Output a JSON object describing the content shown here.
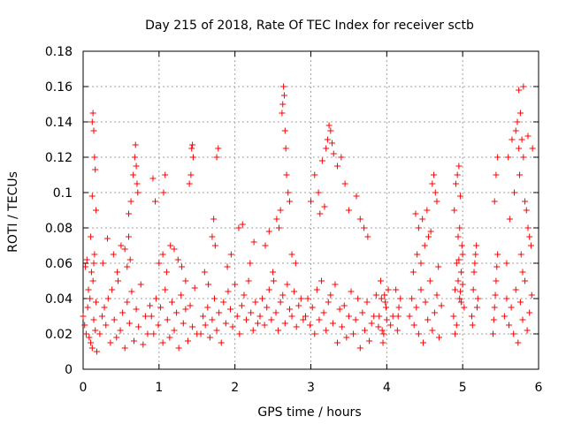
{
  "chart_data": {
    "type": "scatter",
    "title": "Day 215 of 2018, Rate Of TEC Index for receiver sctb",
    "xlabel": "GPS time / hours",
    "ylabel": "ROTI / TECUs",
    "xlim": [
      0,
      6
    ],
    "ylim": [
      0,
      0.18
    ],
    "x_ticks": [
      "0",
      "1",
      "2",
      "3",
      "4",
      "5",
      "6"
    ],
    "y_ticks": [
      "0",
      "0.02",
      "0.04",
      "0.06",
      "0.08",
      "0.1",
      "0.12",
      "0.14",
      "0.16",
      "0.18"
    ],
    "grid": true,
    "marker": "+",
    "series": [
      {
        "name": "ROTI",
        "color": "#ff0000",
        "x": [
          0.0,
          0.02,
          0.04,
          0.06,
          0.08,
          0.1,
          0.12,
          0.14,
          0.16,
          0.18,
          0.03,
          0.05,
          0.07,
          0.09,
          0.11,
          0.13,
          0.15,
          0.17,
          0.12,
          0.13,
          0.14,
          0.15,
          0.16,
          0.17,
          0.1,
          0.12,
          0.14,
          0.22,
          0.25,
          0.28,
          0.3,
          0.33,
          0.36,
          0.38,
          0.41,
          0.44,
          0.46,
          0.49,
          0.52,
          0.55,
          0.58,
          0.61,
          0.64,
          0.67,
          0.7,
          0.73,
          0.76,
          0.79,
          0.82,
          0.85,
          0.88,
          0.26,
          0.32,
          0.4,
          0.45,
          0.5,
          0.55,
          0.6,
          0.63,
          0.66,
          0.68,
          0.69,
          0.7,
          0.71,
          0.72,
          0.58,
          0.6,
          0.62,
          0.9,
          0.93,
          0.96,
          0.99,
          1.02,
          1.05,
          1.08,
          1.11,
          1.14,
          1.17,
          1.2,
          1.23,
          1.26,
          1.29,
          1.32,
          1.35,
          1.38,
          1.41,
          1.44,
          1.47,
          1.5,
          1.0,
          1.05,
          1.1,
          1.15,
          1.2,
          1.25,
          1.3,
          1.35,
          1.4,
          1.42,
          1.43,
          1.44,
          1.45,
          0.92,
          0.95,
          1.06,
          1.08,
          1.55,
          1.58,
          1.61,
          1.64,
          1.67,
          1.7,
          1.73,
          1.76,
          1.79,
          1.82,
          1.85,
          1.88,
          1.91,
          1.94,
          1.97,
          2.0,
          2.03,
          2.06,
          2.09,
          2.12,
          2.15,
          2.18,
          2.21,
          2.24,
          2.27,
          2.3,
          1.6,
          1.65,
          1.7,
          1.72,
          1.74,
          1.76,
          1.78,
          1.9,
          1.95,
          2.05,
          2.1,
          2.2,
          2.25,
          2.33,
          2.36,
          2.39,
          2.42,
          2.45,
          2.48,
          2.51,
          2.54,
          2.57,
          2.6,
          2.63,
          2.66,
          2.69,
          2.72,
          2.75,
          2.78,
          2.81,
          2.84,
          2.87,
          2.9,
          2.62,
          2.63,
          2.64,
          2.65,
          2.66,
          2.67,
          2.68,
          2.7,
          2.72,
          2.4,
          2.45,
          2.55,
          2.6,
          2.75,
          2.8,
          2.5,
          2.58,
          2.93,
          2.96,
          2.99,
          3.02,
          3.05,
          3.08,
          3.11,
          3.14,
          3.17,
          3.2,
          3.23,
          3.26,
          3.29,
          3.32,
          3.35,
          3.38,
          3.41,
          3.44,
          3.47,
          3.5,
          3.53,
          3.56,
          3.59,
          3.62,
          3.65,
          3.68,
          3.71,
          3.74,
          3.77,
          3.8,
          3.83,
          3.86,
          3.89,
          3.0,
          3.05,
          3.1,
          3.15,
          3.2,
          3.22,
          3.24,
          3.26,
          3.28,
          3.3,
          3.35,
          3.4,
          3.45,
          3.5,
          3.6,
          3.65,
          3.7,
          3.75,
          3.12,
          3.18,
          3.9,
          3.93,
          3.96,
          3.99,
          4.02,
          4.05,
          4.08,
          3.92,
          3.95,
          3.98,
          4.0,
          3.94,
          3.97,
          4.12,
          4.15,
          4.18,
          4.14,
          4.16,
          4.3,
          4.33,
          4.36,
          4.39,
          4.42,
          4.45,
          4.48,
          4.51,
          4.54,
          4.57,
          4.6,
          4.63,
          4.66,
          4.69,
          4.72,
          4.35,
          4.4,
          4.45,
          4.5,
          4.55,
          4.58,
          4.6,
          4.62,
          4.64,
          4.66,
          4.38,
          4.42,
          4.47,
          4.53,
          4.68,
          4.88,
          4.9,
          4.92,
          4.94,
          4.96,
          4.98,
          5.0,
          5.02,
          4.89,
          4.91,
          4.93,
          4.95,
          4.97,
          4.99,
          4.9,
          4.92,
          4.94,
          4.96,
          4.98,
          5.0,
          4.95,
          4.97,
          5.12,
          5.14,
          5.16,
          5.18,
          5.2,
          5.13,
          5.15,
          5.17,
          5.19,
          5.4,
          5.42,
          5.44,
          5.46,
          5.41,
          5.43,
          5.45,
          5.44,
          5.46,
          5.42,
          5.55,
          5.58,
          5.61,
          5.64,
          5.67,
          5.7,
          5.73,
          5.76,
          5.79,
          5.82,
          5.85,
          5.88,
          5.91,
          5.6,
          5.65,
          5.7,
          5.72,
          5.74,
          5.76,
          5.78,
          5.8,
          5.82,
          5.84,
          5.86,
          5.88,
          5.9,
          5.58,
          5.62,
          5.68,
          5.74,
          5.8,
          5.86,
          5.92,
          5.75,
          5.77,
          5.79
        ],
        "y": [
          0.03,
          0.025,
          0.02,
          0.035,
          0.018,
          0.015,
          0.012,
          0.028,
          0.022,
          0.01,
          0.058,
          0.062,
          0.045,
          0.04,
          0.055,
          0.05,
          0.065,
          0.038,
          0.14,
          0.145,
          0.135,
          0.12,
          0.113,
          0.09,
          0.075,
          0.098,
          0.06,
          0.02,
          0.03,
          0.035,
          0.025,
          0.04,
          0.015,
          0.045,
          0.028,
          0.018,
          0.05,
          0.022,
          0.032,
          0.012,
          0.038,
          0.026,
          0.044,
          0.016,
          0.034,
          0.024,
          0.048,
          0.014,
          0.03,
          0.02,
          0.036,
          0.06,
          0.074,
          0.065,
          0.055,
          0.07,
          0.068,
          0.088,
          0.095,
          0.11,
          0.12,
          0.127,
          0.115,
          0.105,
          0.1,
          0.058,
          0.075,
          0.062,
          0.03,
          0.02,
          0.04,
          0.025,
          0.035,
          0.015,
          0.045,
          0.028,
          0.018,
          0.038,
          0.022,
          0.032,
          0.012,
          0.042,
          0.026,
          0.034,
          0.016,
          0.036,
          0.024,
          0.046,
          0.02,
          0.06,
          0.065,
          0.055,
          0.07,
          0.068,
          0.062,
          0.058,
          0.05,
          0.105,
          0.11,
          0.125,
          0.127,
          0.12,
          0.108,
          0.095,
          0.1,
          0.11,
          0.02,
          0.03,
          0.025,
          0.035,
          0.018,
          0.028,
          0.04,
          0.022,
          0.032,
          0.015,
          0.038,
          0.026,
          0.044,
          0.034,
          0.024,
          0.048,
          0.03,
          0.02,
          0.036,
          0.042,
          0.028,
          0.05,
          0.032,
          0.022,
          0.038,
          0.026,
          0.055,
          0.048,
          0.075,
          0.085,
          0.07,
          0.12,
          0.125,
          0.058,
          0.065,
          0.08,
          0.082,
          0.06,
          0.072,
          0.03,
          0.04,
          0.025,
          0.035,
          0.045,
          0.028,
          0.05,
          0.032,
          0.022,
          0.038,
          0.042,
          0.026,
          0.048,
          0.034,
          0.03,
          0.044,
          0.024,
          0.036,
          0.04,
          0.028,
          0.145,
          0.15,
          0.16,
          0.155,
          0.135,
          0.125,
          0.11,
          0.1,
          0.095,
          0.07,
          0.078,
          0.085,
          0.09,
          0.065,
          0.06,
          0.055,
          0.08,
          0.03,
          0.04,
          0.025,
          0.035,
          0.02,
          0.045,
          0.028,
          0.05,
          0.032,
          0.022,
          0.038,
          0.042,
          0.026,
          0.048,
          0.015,
          0.034,
          0.024,
          0.036,
          0.018,
          0.03,
          0.044,
          0.02,
          0.028,
          0.04,
          0.012,
          0.032,
          0.022,
          0.038,
          0.016,
          0.026,
          0.03,
          0.042,
          0.024,
          0.095,
          0.11,
          0.1,
          0.118,
          0.125,
          0.13,
          0.138,
          0.135,
          0.128,
          0.122,
          0.115,
          0.12,
          0.105,
          0.09,
          0.098,
          0.085,
          0.08,
          0.075,
          0.088,
          0.092,
          0.03,
          0.04,
          0.02,
          0.035,
          0.045,
          0.025,
          0.03,
          0.05,
          0.015,
          0.038,
          0.028,
          0.022,
          0.042,
          0.045,
          0.03,
          0.04,
          0.022,
          0.035,
          0.03,
          0.04,
          0.025,
          0.035,
          0.02,
          0.045,
          0.015,
          0.038,
          0.028,
          0.05,
          0.022,
          0.032,
          0.042,
          0.018,
          0.036,
          0.055,
          0.065,
          0.06,
          0.07,
          0.075,
          0.078,
          0.105,
          0.11,
          0.1,
          0.095,
          0.088,
          0.08,
          0.085,
          0.09,
          0.058,
          0.03,
          0.045,
          0.06,
          0.075,
          0.04,
          0.055,
          0.065,
          0.035,
          0.09,
          0.105,
          0.11,
          0.115,
          0.098,
          0.07,
          0.02,
          0.025,
          0.05,
          0.08,
          0.038,
          0.048,
          0.062,
          0.044,
          0.03,
          0.045,
          0.06,
          0.07,
          0.04,
          0.025,
          0.055,
          0.065,
          0.035,
          0.02,
          0.035,
          0.05,
          0.065,
          0.028,
          0.042,
          0.058,
          0.11,
          0.12,
          0.095,
          0.03,
          0.04,
          0.025,
          0.035,
          0.02,
          0.045,
          0.015,
          0.038,
          0.028,
          0.05,
          0.022,
          0.032,
          0.042,
          0.12,
          0.13,
          0.135,
          0.14,
          0.125,
          0.145,
          0.13,
          0.12,
          0.095,
          0.09,
          0.08,
          0.075,
          0.07,
          0.06,
          0.085,
          0.1,
          0.158,
          0.16,
          0.132,
          0.125,
          0.11,
          0.065,
          0.055
        ]
      }
    ]
  }
}
